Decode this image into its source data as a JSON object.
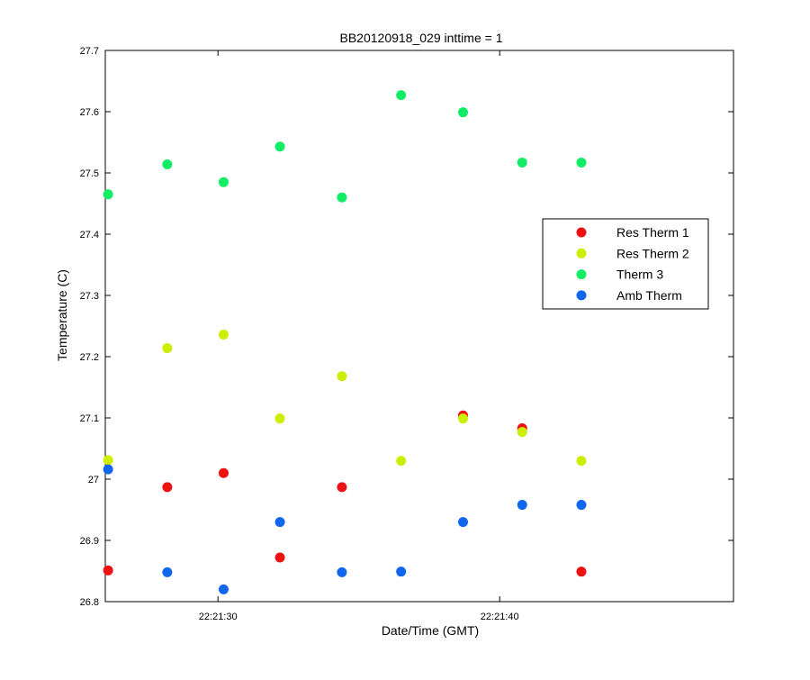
{
  "chart_data": {
    "type": "scatter",
    "title": "BB20120918_029 inttime = 1",
    "xlabel": "Date/Time (GMT)",
    "ylabel": "Temperature (C)",
    "xlim": [
      "22:21:26",
      "22:21:48.3"
    ],
    "ylim": [
      26.8,
      27.7
    ],
    "x_ticks": [
      "22:21:30",
      "22:21:40"
    ],
    "y_ticks": [
      "26.8",
      "26.9",
      "27",
      "27.1",
      "27.2",
      "27.3",
      "27.4",
      "27.5",
      "27.6",
      "27.7"
    ],
    "grid": false,
    "legend_position": "right",
    "x": [
      "22:21:26.1",
      "22:21:28.2",
      "22:21:30.2",
      "22:21:32.2",
      "22:21:34.4",
      "22:21:36.5",
      "22:21:38.7",
      "22:21:40.8",
      "22:21:42.9"
    ],
    "series": [
      {
        "name": "Res Therm 1",
        "color": "#ee1111",
        "values": [
          26.851,
          26.987,
          27.01,
          26.872,
          26.987,
          null,
          27.104,
          27.083,
          26.849
        ]
      },
      {
        "name": "Res Therm 2",
        "color": "#ccee00",
        "values": [
          27.031,
          27.214,
          27.236,
          27.099,
          27.168,
          27.03,
          27.099,
          27.077,
          27.03
        ]
      },
      {
        "name": "Therm 3",
        "color": "#11ee66",
        "values": [
          27.465,
          27.514,
          27.485,
          27.543,
          27.46,
          27.627,
          27.599,
          27.517,
          27.517
        ]
      },
      {
        "name": "Amb Therm",
        "color": "#1166ee",
        "values": [
          27.016,
          26.848,
          26.82,
          26.93,
          26.848,
          26.849,
          26.93,
          26.958,
          26.958
        ]
      }
    ]
  }
}
